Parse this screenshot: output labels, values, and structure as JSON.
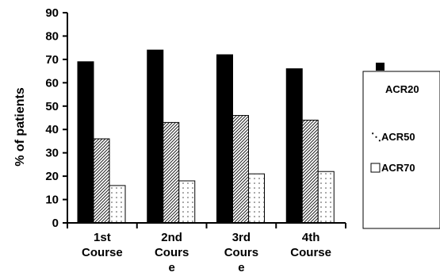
{
  "chart_data": {
    "type": "bar",
    "ylabel": "% of patients",
    "xlabel": "",
    "title": "",
    "ylim": [
      0,
      90
    ],
    "yticks": [
      "0",
      "10",
      "20",
      "30",
      "40",
      "50",
      "60",
      "70",
      "80",
      "90"
    ],
    "categories": [
      [
        "1st",
        "Course"
      ],
      [
        "2nd",
        "Cours",
        "e"
      ],
      [
        "3rd",
        "Cours",
        "e"
      ],
      [
        "4th",
        "Course"
      ]
    ],
    "series": [
      {
        "name": "ACR20",
        "values": [
          69,
          74,
          72,
          66
        ],
        "fill": "#000000"
      },
      {
        "name": "ACR50",
        "values": [
          36,
          43,
          46,
          44
        ],
        "fill": "hatch"
      },
      {
        "name": "ACR70",
        "values": [
          16,
          18,
          21,
          22
        ],
        "fill": "dots"
      }
    ],
    "legend": {
      "position": "right",
      "items": [
        {
          "marker": "■",
          "label": ""
        },
        {
          "marker": "",
          "label": "ACR20"
        },
        {
          "marker": "▧",
          "label": "ACR50"
        },
        {
          "marker": "□",
          "label": "ACR70"
        }
      ]
    },
    "grid": false
  }
}
